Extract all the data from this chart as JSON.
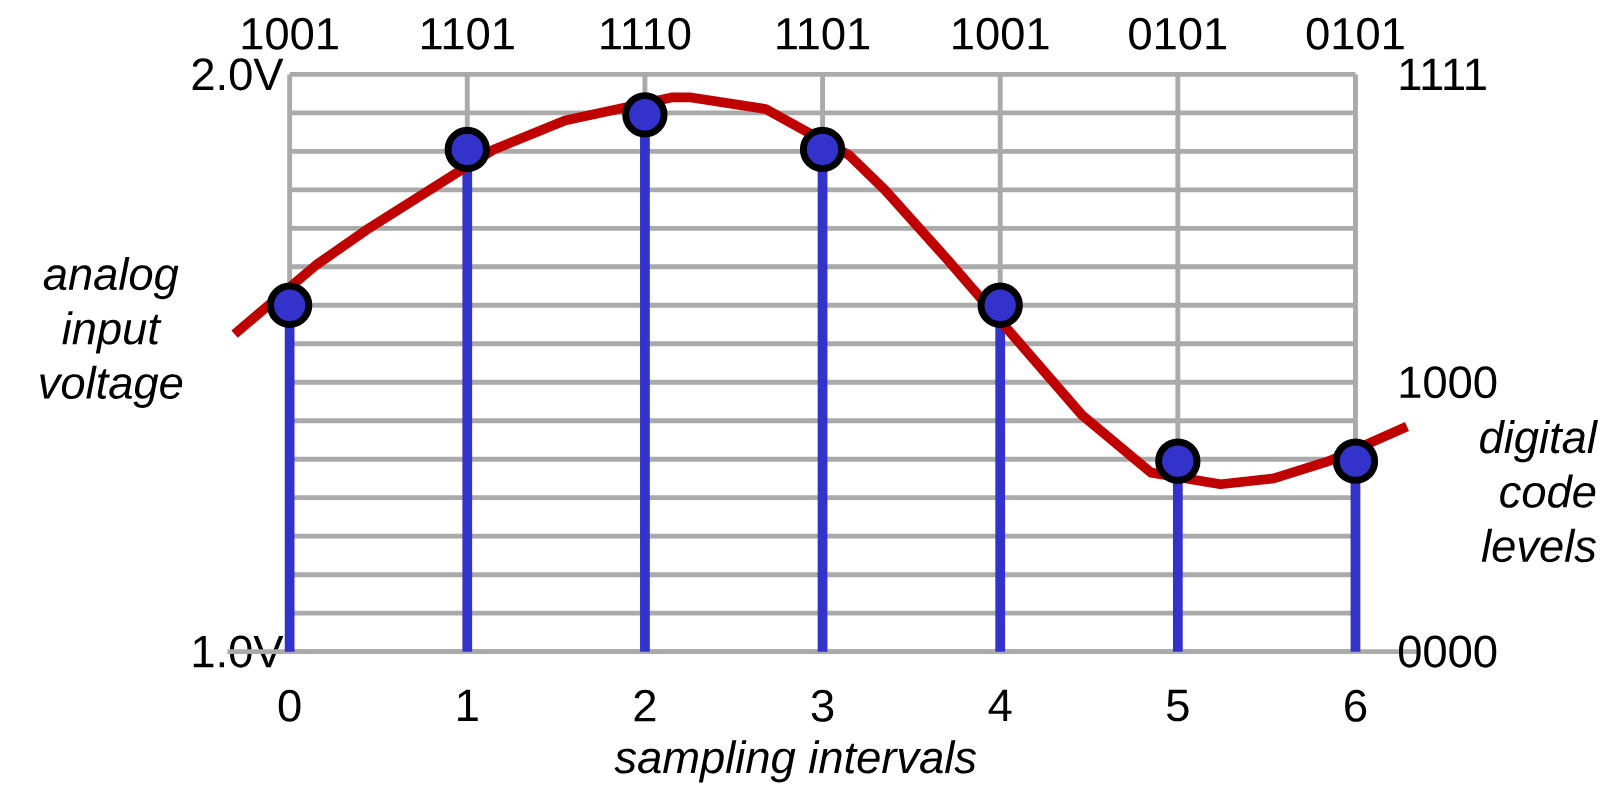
{
  "chart_data": {
    "type": "line",
    "xlabel": "sampling intervals",
    "ylabel": "analog input voltage",
    "xlim": [
      -0.35,
      6.35
    ],
    "xticks": [
      0,
      1,
      2,
      3,
      4,
      5,
      6
    ],
    "ylim": [
      1,
      2
    ],
    "yticks": [
      {
        "value": 1,
        "label": "1.0V"
      },
      {
        "value": 1.0667,
        "label": null
      },
      {
        "value": 1.1333,
        "label": null
      },
      {
        "value": 1.2,
        "label": null
      },
      {
        "value": 1.2667,
        "label": null
      },
      {
        "value": 1.3333,
        "label": null
      },
      {
        "value": 1.4,
        "label": null
      },
      {
        "value": 1.4667,
        "label": null
      },
      {
        "value": 1.5333,
        "label": null
      },
      {
        "value": 1.6,
        "label": null
      },
      {
        "value": 1.6667,
        "label": null
      },
      {
        "value": 1.7333,
        "label": null
      },
      {
        "value": 1.8,
        "label": null
      },
      {
        "value": 1.8667,
        "label": null
      },
      {
        "value": 1.9333,
        "label": null
      },
      {
        "value": 2,
        "label": "2.0V"
      }
    ],
    "grid": true,
    "annotations": [
      "1001",
      "1101",
      "1110",
      "1101",
      "1001",
      "0101",
      "0101",
      "1111",
      "1000",
      "0000",
      "digital code levels"
    ],
    "series": [
      {
        "color": "#c00000",
        "x": [
          -0.31,
          0.15,
          0.43,
          1.15,
          1.55,
          2.15,
          2.26,
          2.68,
          3.15,
          3.35,
          3.7,
          4.15,
          4.46,
          4.85,
          5.24,
          5.54,
          5.85,
          6.29
        ],
        "values": [
          1.55,
          1.67,
          1.73,
          1.87,
          1.92,
          1.96,
          1.96,
          1.94,
          1.86,
          1.8,
          1.68,
          1.52,
          1.41,
          1.31,
          1.29,
          1.3,
          1.33,
          1.39
        ]
      },
      {
        "type": "lollipop",
        "color": "#3333cc",
        "marker": "circle",
        "x": [
          0,
          1,
          2,
          3,
          4,
          5,
          6
        ],
        "values": [
          1.6,
          1.87,
          1.93,
          1.87,
          1.6,
          1.33,
          1.33
        ]
      }
    ]
  }
}
